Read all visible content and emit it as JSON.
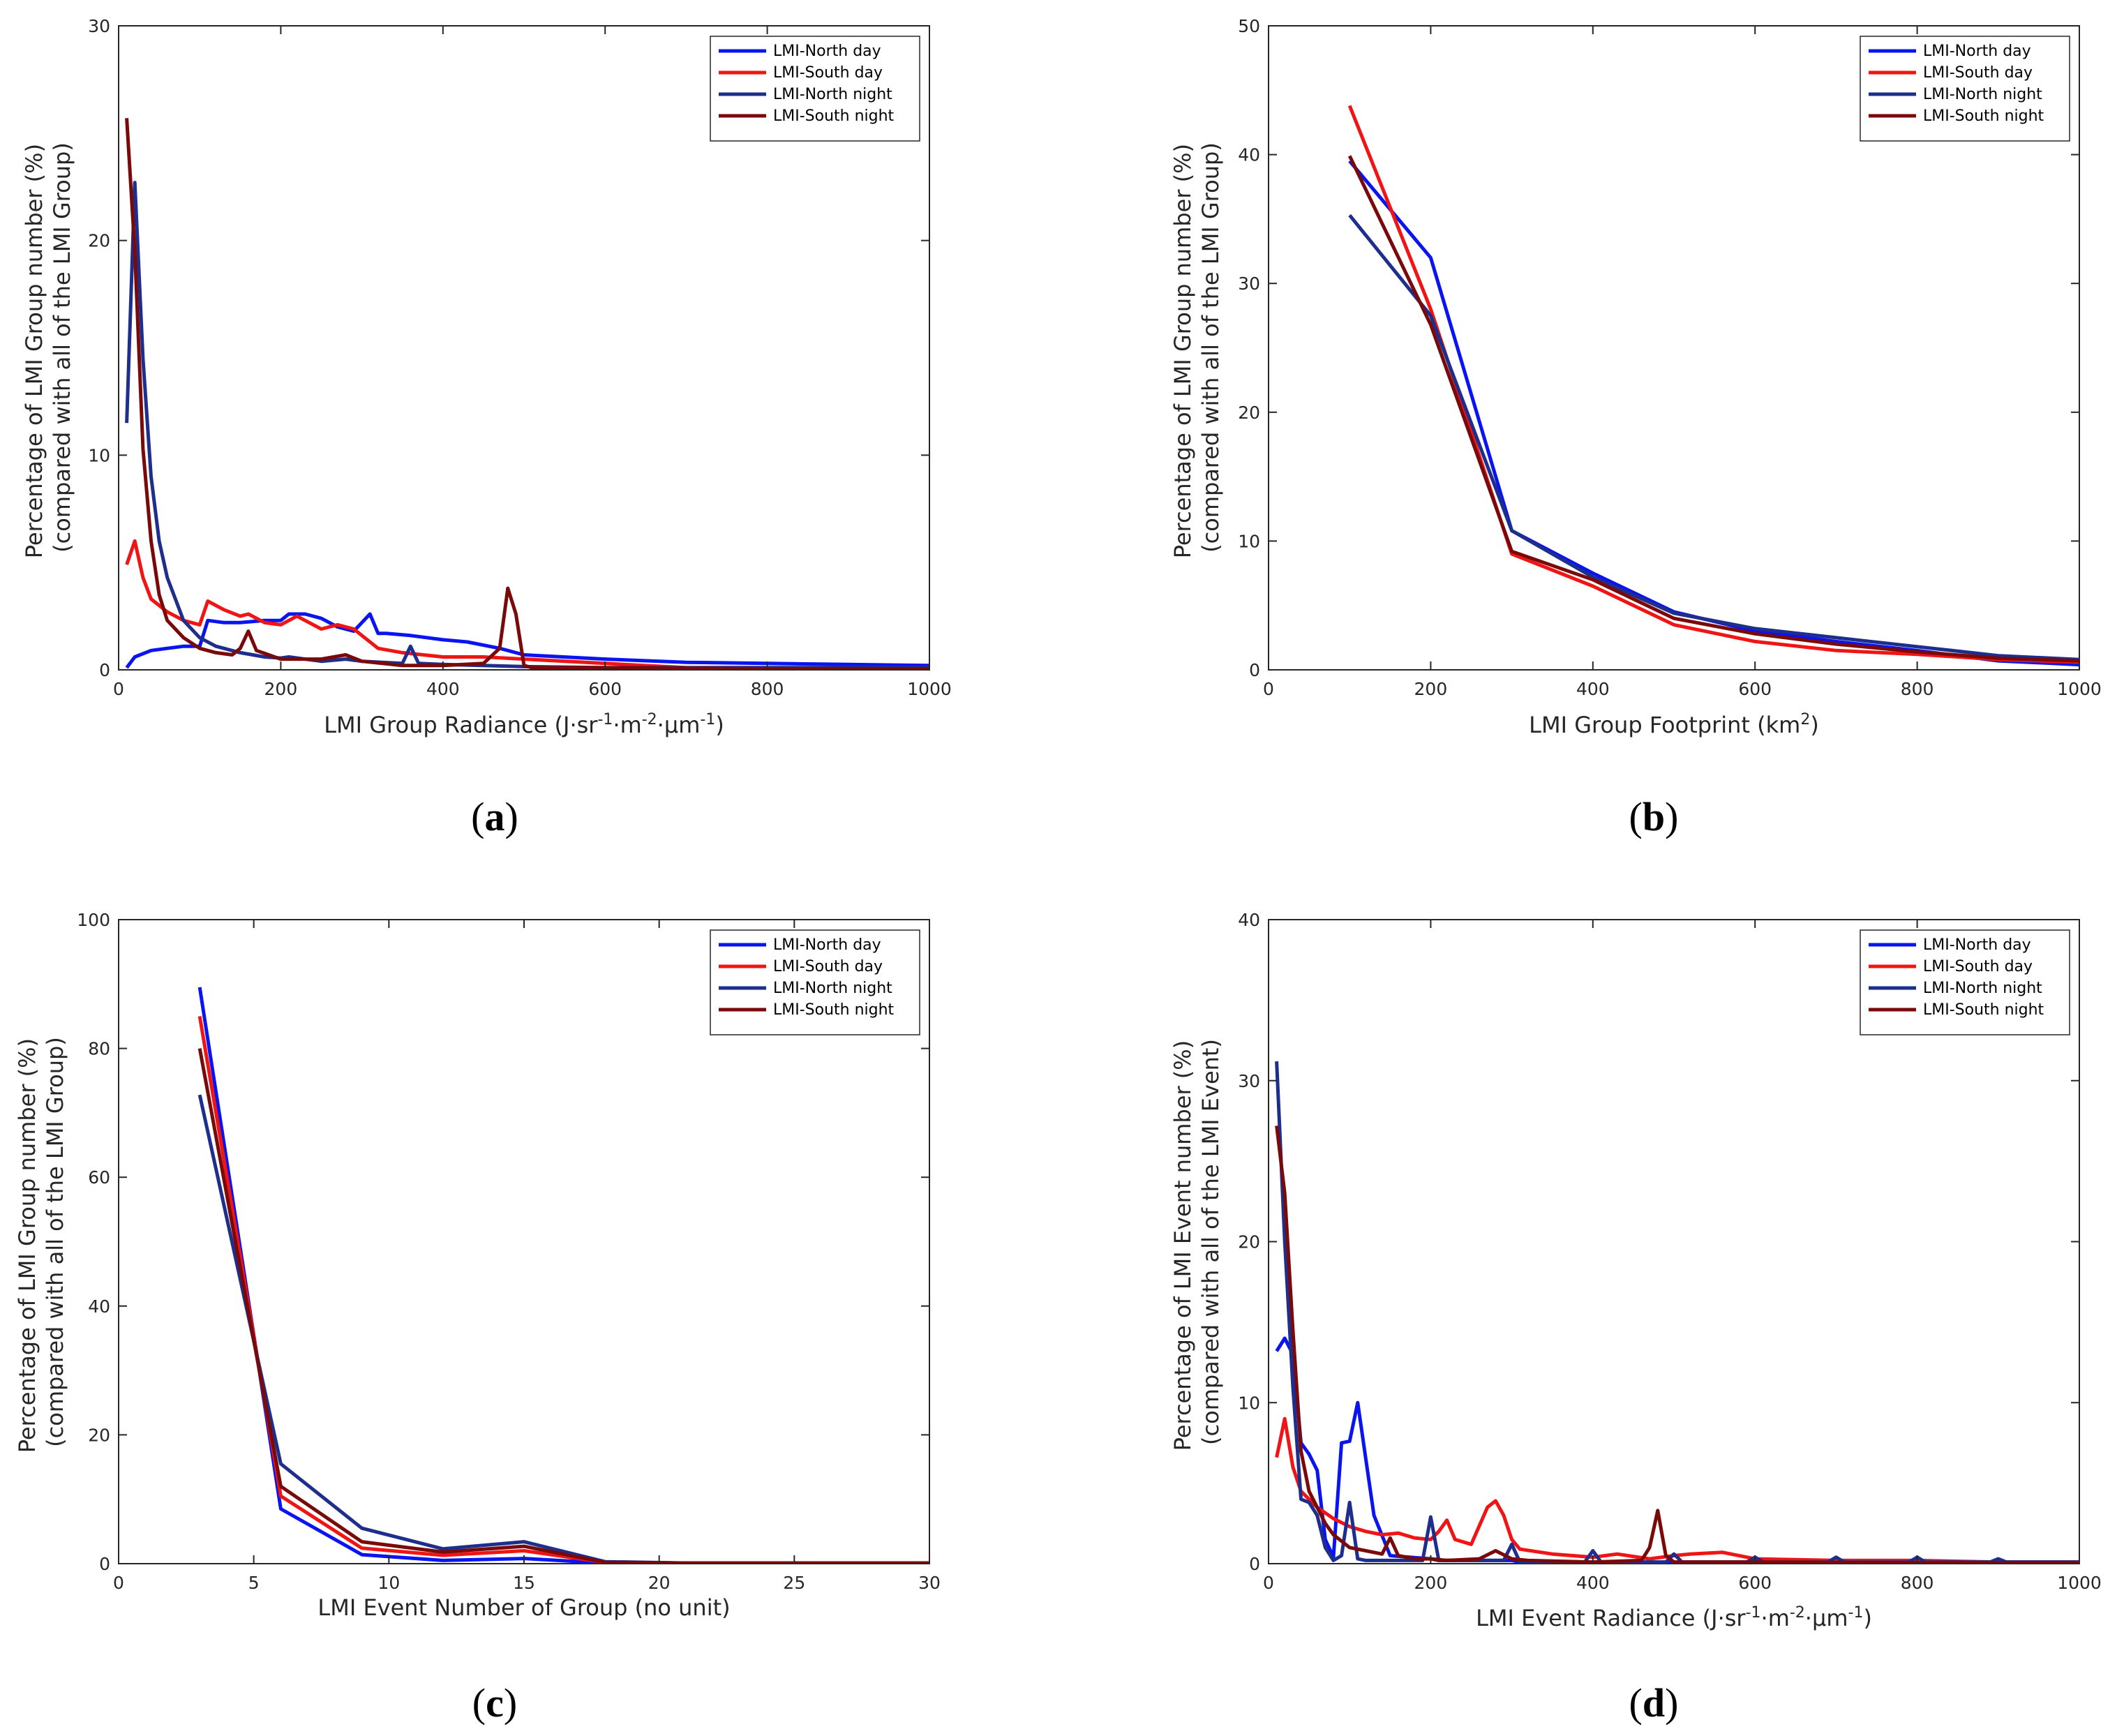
{
  "legend_entries": [
    "LMI-North day",
    "LMI-South day",
    "LMI-North night",
    "LMI-South night"
  ],
  "series_colors": [
    "#0a14f0",
    "#f01414",
    "#1e2e8c",
    "#7a0a0a"
  ],
  "chart_data": [
    {
      "id": "a",
      "type": "line",
      "panel_label": [
        "(",
        "a",
        ")"
      ],
      "xlabel": "LMI Group Radiance (J·sr",
      "xlabel_parts": [
        "LMI Group Radiance (J·sr",
        "-1",
        "·m",
        "-2",
        "·μm",
        "-1",
        ")"
      ],
      "ylabel": [
        "Percentage of LMI Group number (%)",
        "(compared with all of the LMI Group)"
      ],
      "xlim": [
        0,
        1000
      ],
      "ylim": [
        0,
        30
      ],
      "xticks": [
        0,
        200,
        400,
        600,
        800,
        1000
      ],
      "yticks": [
        0,
        10,
        20,
        30
      ],
      "legend": [
        "LMI-North day",
        "LMI-South day",
        "LMI-North night",
        "LMI-South night"
      ],
      "series": [
        {
          "name": "LMI-North day",
          "x": [
            10,
            20,
            40,
            60,
            80,
            100,
            110,
            130,
            150,
            180,
            200,
            210,
            230,
            250,
            270,
            290,
            300,
            310,
            320,
            330,
            360,
            400,
            430,
            470,
            500,
            600,
            700,
            800,
            900,
            1000
          ],
          "y": [
            0.1,
            0.6,
            0.9,
            1.0,
            1.1,
            1.1,
            2.3,
            2.2,
            2.2,
            2.3,
            2.3,
            2.6,
            2.6,
            2.4,
            2.0,
            1.8,
            2.2,
            2.6,
            1.7,
            1.7,
            1.6,
            1.4,
            1.3,
            1.0,
            0.7,
            0.5,
            0.35,
            0.3,
            0.25,
            0.2
          ]
        },
        {
          "name": "LMI-South day",
          "x": [
            10,
            20,
            30,
            40,
            60,
            80,
            100,
            110,
            130,
            150,
            160,
            180,
            200,
            220,
            250,
            270,
            290,
            320,
            350,
            400,
            450,
            500,
            600,
            700,
            800,
            900,
            1000
          ],
          "y": [
            4.9,
            6.0,
            4.3,
            3.3,
            2.7,
            2.3,
            2.1,
            3.2,
            2.8,
            2.5,
            2.6,
            2.2,
            2.1,
            2.5,
            1.9,
            2.1,
            1.9,
            1.0,
            0.8,
            0.6,
            0.6,
            0.5,
            0.3,
            0.1,
            0.1,
            0.1,
            0.1
          ]
        },
        {
          "name": "LMI-North night",
          "x": [
            10,
            20,
            30,
            40,
            50,
            60,
            80,
            100,
            120,
            150,
            180,
            200,
            210,
            250,
            280,
            300,
            350,
            360,
            370,
            400,
            450,
            500,
            600,
            800,
            1000
          ],
          "y": [
            11.5,
            22.7,
            14.5,
            9.0,
            6.0,
            4.3,
            2.3,
            1.5,
            1.1,
            0.8,
            0.6,
            0.55,
            0.6,
            0.4,
            0.5,
            0.4,
            0.3,
            1.1,
            0.3,
            0.25,
            0.2,
            0.15,
            0.1,
            0.1,
            0.1
          ]
        },
        {
          "name": "LMI-South night",
          "x": [
            10,
            20,
            30,
            40,
            50,
            60,
            80,
            100,
            120,
            140,
            150,
            160,
            170,
            200,
            250,
            280,
            300,
            350,
            400,
            450,
            470,
            480,
            490,
            500,
            510,
            600,
            800,
            1000
          ],
          "y": [
            25.7,
            19.5,
            10.3,
            6.0,
            3.5,
            2.3,
            1.5,
            1.0,
            0.8,
            0.7,
            1.0,
            1.8,
            0.9,
            0.5,
            0.5,
            0.7,
            0.4,
            0.2,
            0.2,
            0.3,
            1.0,
            3.8,
            2.6,
            0.2,
            0.1,
            0.1,
            0.05,
            0.05
          ]
        }
      ]
    },
    {
      "id": "b",
      "type": "line",
      "panel_label": [
        "(",
        "b",
        ")"
      ],
      "xlabel": "LMI Group Footprint (km",
      "xlabel_parts": [
        "LMI Group Footprint (km",
        "2",
        ")"
      ],
      "ylabel": [
        "Percentage of LMI Group number (%)",
        "(compared with all of the LMI Group)"
      ],
      "xlim": [
        0,
        1000
      ],
      "ylim": [
        0,
        50
      ],
      "xticks": [
        0,
        200,
        400,
        600,
        800,
        1000
      ],
      "yticks": [
        0,
        10,
        20,
        30,
        40,
        50
      ],
      "legend": [
        "LMI-North day",
        "LMI-South day",
        "LMI-North night",
        "LMI-South night"
      ],
      "series": [
        {
          "name": "LMI-North day",
          "x": [
            100,
            200,
            300,
            400,
            500,
            600,
            700,
            800,
            900,
            1000
          ],
          "y": [
            39.5,
            32.0,
            10.8,
            7.5,
            4.5,
            3.0,
            2.2,
            1.5,
            0.7,
            0.4
          ]
        },
        {
          "name": "LMI-South day",
          "x": [
            100,
            200,
            300,
            400,
            500,
            600,
            700,
            800,
            900,
            1000
          ],
          "y": [
            43.8,
            28.0,
            9.0,
            6.5,
            3.5,
            2.2,
            1.5,
            1.2,
            0.8,
            0.6
          ]
        },
        {
          "name": "LMI-North night",
          "x": [
            100,
            200,
            300,
            400,
            500,
            600,
            700,
            800,
            900,
            1000
          ],
          "y": [
            35.3,
            27.5,
            10.8,
            7.2,
            4.4,
            3.2,
            2.5,
            1.8,
            1.1,
            0.8
          ]
        },
        {
          "name": "LMI-South night",
          "x": [
            100,
            200,
            300,
            400,
            500,
            600,
            700,
            800,
            900,
            1000
          ],
          "y": [
            39.9,
            26.8,
            9.2,
            7.0,
            4.0,
            2.8,
            2.0,
            1.4,
            0.9,
            0.7
          ]
        }
      ]
    },
    {
      "id": "c",
      "type": "line",
      "panel_label": [
        "(",
        "c",
        ")"
      ],
      "xlabel": "LMI Event Number of Group (no unit)",
      "xlabel_parts": [
        "LMI Event Number of Group (no unit)"
      ],
      "ylabel": [
        "Percentage of LMI Group number (%)",
        "(compared with all of the LMI Group)"
      ],
      "xlim": [
        0,
        30
      ],
      "ylim": [
        0,
        100
      ],
      "xticks": [
        0,
        5,
        10,
        15,
        20,
        25,
        30
      ],
      "yticks": [
        0,
        20,
        40,
        60,
        80,
        100
      ],
      "legend": [
        "LMI-North day",
        "LMI-South day",
        "LMI-North night",
        "LMI-South night"
      ],
      "series": [
        {
          "name": "LMI-North day",
          "x": [
            3,
            6,
            9,
            12,
            15,
            18,
            21,
            24,
            27,
            30
          ],
          "y": [
            89.5,
            8.5,
            1.4,
            0.5,
            0.8,
            0.1,
            0.05,
            0.05,
            0.05,
            0.05
          ]
        },
        {
          "name": "LMI-South day",
          "x": [
            3,
            6,
            9,
            12,
            15,
            18,
            21,
            24,
            27,
            30
          ],
          "y": [
            85.0,
            10.5,
            2.4,
            1.3,
            2.0,
            0.2,
            0.1,
            0.1,
            0.1,
            0.1
          ]
        },
        {
          "name": "LMI-North night",
          "x": [
            3,
            6,
            9,
            12,
            15,
            18,
            21,
            24,
            27,
            30
          ],
          "y": [
            72.8,
            15.5,
            5.5,
            2.3,
            3.4,
            0.3,
            0.1,
            0.1,
            0.1,
            0.1
          ]
        },
        {
          "name": "LMI-South night",
          "x": [
            3,
            6,
            9,
            12,
            15,
            18,
            21,
            24,
            27,
            30
          ],
          "y": [
            80.0,
            12.0,
            3.4,
            1.8,
            2.7,
            0.2,
            0.1,
            0.1,
            0.1,
            0.1
          ]
        }
      ]
    },
    {
      "id": "d",
      "type": "line",
      "panel_label": [
        "(",
        "d",
        ")"
      ],
      "xlabel": "LMI Event Radiance (J·sr",
      "xlabel_parts": [
        "LMI Event Radiance (J·sr",
        "-1",
        "·m",
        "-2",
        "·μm",
        "-1",
        ")"
      ],
      "ylabel": [
        "Percentage of LMI Event number (%)",
        "(compared with all of the LMI Event)"
      ],
      "xlim": [
        0,
        1000
      ],
      "ylim": [
        0,
        40
      ],
      "xticks": [
        0,
        200,
        400,
        600,
        800,
        1000
      ],
      "yticks": [
        0,
        10,
        20,
        30,
        40
      ],
      "legend": [
        "LMI-North day",
        "LMI-South day",
        "LMI-North night",
        "LMI-South night"
      ],
      "series": [
        {
          "name": "LMI-North day",
          "x": [
            10,
            20,
            30,
            40,
            50,
            60,
            70,
            80,
            90,
            100,
            110,
            120,
            130,
            150,
            200,
            210,
            300,
            310,
            400,
            500,
            600,
            700,
            800,
            900,
            1000
          ],
          "y": [
            13.2,
            14.0,
            13.0,
            7.5,
            6.8,
            5.8,
            1.5,
            0.4,
            7.5,
            7.6,
            10.0,
            6.5,
            3.0,
            0.5,
            0.3,
            0.2,
            0.2,
            0.1,
            0.1,
            0.1,
            0.1,
            0.1,
            0.1,
            0.1,
            0.1
          ]
        },
        {
          "name": "LMI-South day",
          "x": [
            10,
            20,
            30,
            40,
            60,
            80,
            100,
            120,
            140,
            160,
            180,
            200,
            210,
            220,
            230,
            250,
            270,
            280,
            290,
            300,
            310,
            350,
            400,
            430,
            470,
            500,
            520,
            560,
            600,
            700,
            800,
            900,
            1000
          ],
          "y": [
            6.6,
            9.0,
            6.0,
            4.5,
            3.5,
            2.8,
            2.3,
            2.0,
            1.8,
            1.9,
            1.6,
            1.5,
            2.0,
            2.7,
            1.5,
            1.2,
            3.5,
            3.9,
            3.0,
            1.5,
            0.9,
            0.6,
            0.4,
            0.6,
            0.3,
            0.5,
            0.6,
            0.7,
            0.3,
            0.2,
            0.2,
            0.1,
            0.1
          ]
        },
        {
          "name": "LMI-North night",
          "x": [
            10,
            20,
            30,
            40,
            50,
            60,
            70,
            80,
            90,
            100,
            110,
            120,
            130,
            150,
            190,
            200,
            210,
            290,
            300,
            310,
            390,
            400,
            410,
            490,
            500,
            510,
            590,
            600,
            610,
            690,
            700,
            710,
            790,
            800,
            810,
            890,
            900,
            910,
            1000
          ],
          "y": [
            31.2,
            20.0,
            11.0,
            4.0,
            3.8,
            3.0,
            1.0,
            0.2,
            0.5,
            3.8,
            0.3,
            0.2,
            0.2,
            0.2,
            0.2,
            2.9,
            0.2,
            0.2,
            1.2,
            0.1,
            0.1,
            0.8,
            0.1,
            0.1,
            0.6,
            0.1,
            0.1,
            0.4,
            0.1,
            0.1,
            0.4,
            0.1,
            0.1,
            0.4,
            0.1,
            0.1,
            0.3,
            0.1,
            0.1
          ]
        },
        {
          "name": "LMI-South night",
          "x": [
            10,
            20,
            30,
            40,
            50,
            60,
            70,
            80,
            100,
            120,
            140,
            150,
            160,
            180,
            200,
            220,
            260,
            280,
            300,
            320,
            400,
            460,
            470,
            480,
            490,
            500,
            600,
            800,
            1000
          ],
          "y": [
            27.2,
            23.0,
            14.5,
            7.0,
            4.5,
            3.5,
            2.5,
            1.8,
            1.0,
            0.8,
            0.6,
            1.6,
            0.5,
            0.3,
            0.3,
            0.2,
            0.3,
            0.8,
            0.3,
            0.2,
            0.1,
            0.2,
            1.0,
            3.3,
            0.5,
            0.1,
            0.1,
            0.05,
            0.05
          ]
        }
      ]
    }
  ]
}
